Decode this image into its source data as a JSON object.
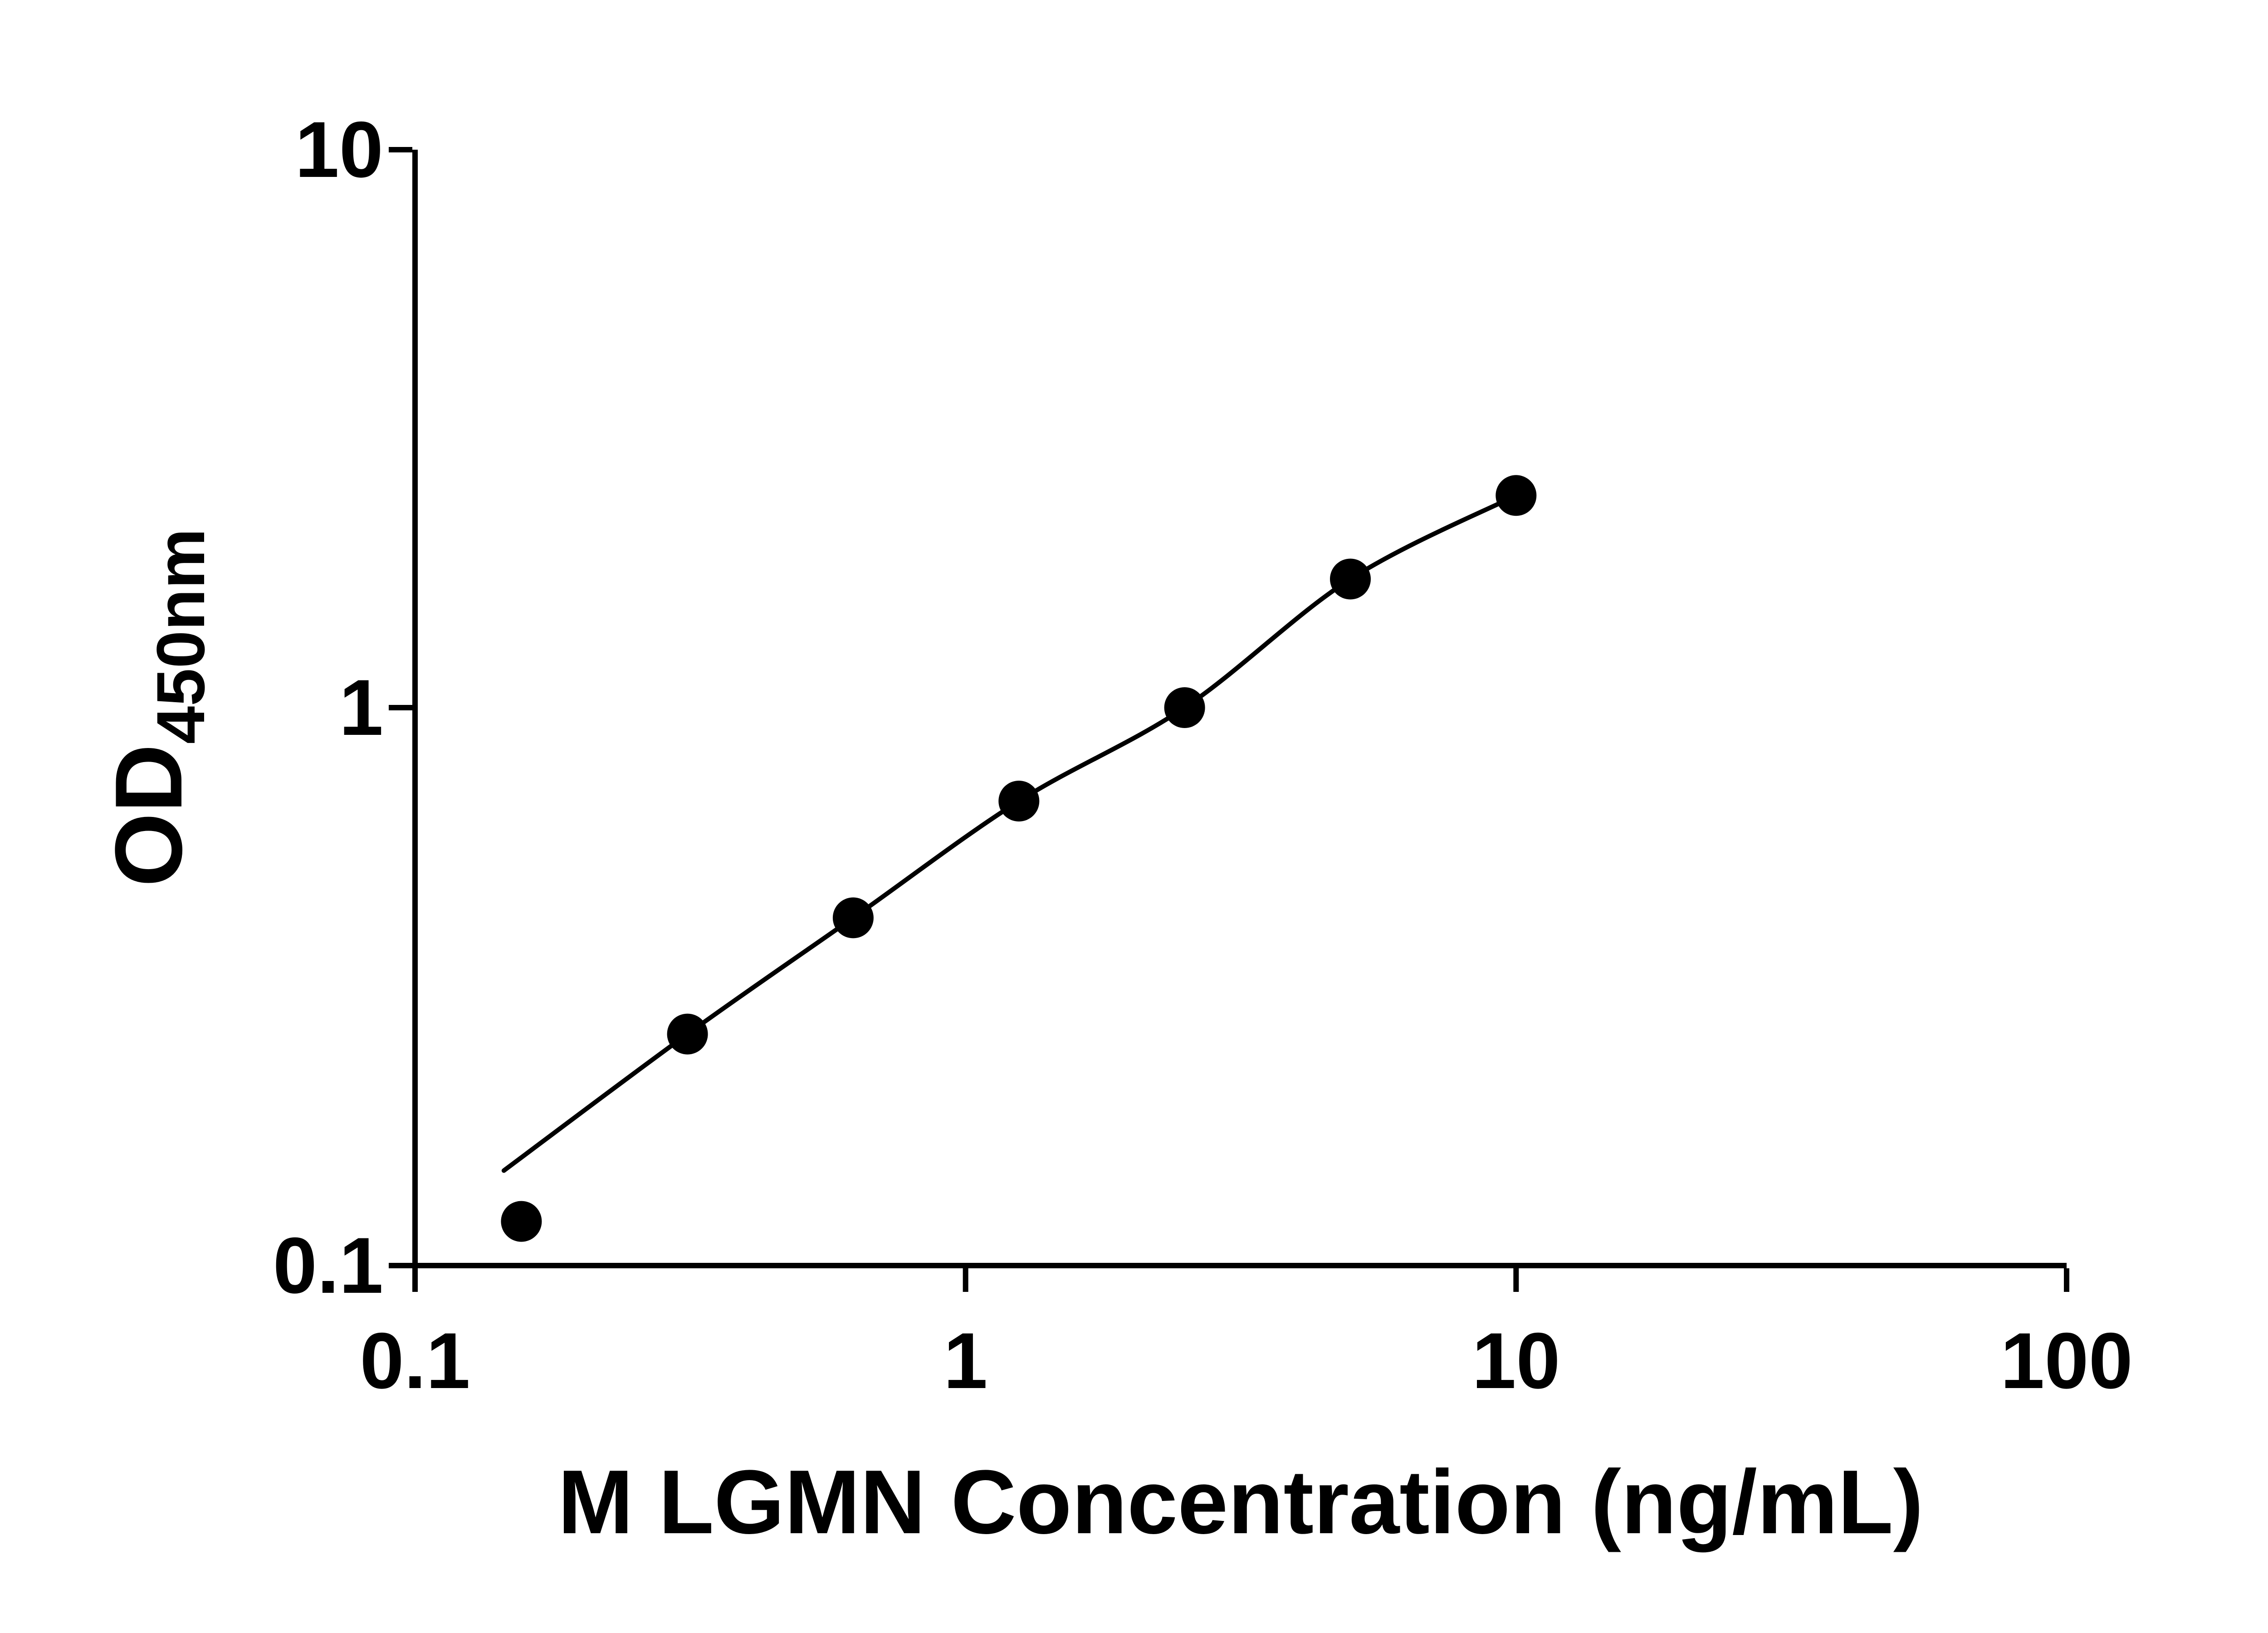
{
  "page": {
    "background": "#ffffff"
  },
  "chart_data": {
    "type": "scatter",
    "title": "",
    "xlabel": "M LGMN Concentration (ng/mL)",
    "ylabel": "OD450nm",
    "ylabel_parts": {
      "main": "OD",
      "subscript": "450nm"
    },
    "x_scale": "log",
    "y_scale": "log",
    "xlim": [
      0.1,
      100
    ],
    "ylim": [
      0.1,
      10
    ],
    "x_ticks": [
      0.1,
      1,
      10,
      100
    ],
    "x_tick_labels": [
      "0.1",
      "1",
      "10",
      "100"
    ],
    "y_ticks": [
      0.1,
      1,
      10
    ],
    "y_tick_labels": [
      "0.1",
      "1",
      "10"
    ],
    "grid": false,
    "legend": false,
    "axis_color": "#000000",
    "marker_color": "#000000",
    "line_color": "#000000",
    "series": [
      {
        "name": "standard-curve-points",
        "marker": "circle",
        "x": [
          0.156,
          0.3125,
          0.625,
          1.25,
          2.5,
          5,
          10
        ],
        "y": [
          0.12,
          0.26,
          0.42,
          0.68,
          1.0,
          1.7,
          2.4
        ]
      }
    ],
    "fit_curve": {
      "name": "fitted-standard-curve",
      "x": [
        0.145,
        0.3125,
        0.625,
        1.25,
        2.5,
        5,
        10
      ],
      "y": [
        0.148,
        0.26,
        0.42,
        0.68,
        1.0,
        1.7,
        2.4
      ]
    }
  }
}
